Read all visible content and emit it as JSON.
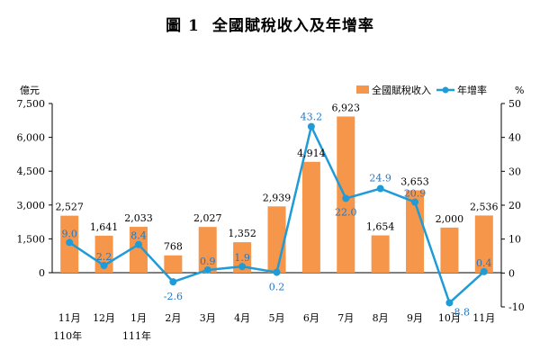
{
  "title": {
    "number": "圖 1",
    "text": "全國賦稅收入及年增率"
  },
  "chart_data": {
    "type": "bar+line",
    "categories": [
      "11月",
      "12月",
      "1月",
      "2月",
      "3月",
      "4月",
      "5月",
      "6月",
      "7月",
      "8月",
      "9月",
      "10月",
      "11月"
    ],
    "year_labels": [
      {
        "index": 0,
        "text": "110年"
      },
      {
        "index": 2,
        "text": "111年"
      }
    ],
    "series": [
      {
        "name": "全國賦稅收入",
        "type": "bar",
        "axis": "left",
        "color": "#f5964a",
        "values": [
          2527,
          1641,
          2033,
          768,
          2027,
          1352,
          2939,
          4914,
          6923,
          1654,
          3653,
          2000,
          2536
        ],
        "labels": [
          "2,527",
          "1,641",
          "2,033",
          "768",
          "2,027",
          "1,352",
          "2,939",
          "4,914",
          "6,923",
          "1,654",
          "3,653",
          "2,000",
          "2,536"
        ]
      },
      {
        "name": "年增率",
        "type": "line",
        "axis": "right",
        "color": "#1f9bd7",
        "values": [
          9.0,
          2.2,
          8.4,
          -2.6,
          0.9,
          1.9,
          0.2,
          43.2,
          22.0,
          24.9,
          20.9,
          -8.8,
          0.4
        ],
        "labels": [
          "9.0",
          "2.2",
          "8.4",
          "-2.6",
          "0.9",
          "1.9",
          "0.2",
          "43.2",
          "22.0",
          "24.9",
          "20.9",
          "-8.8",
          "0.4"
        ]
      }
    ],
    "left_axis": {
      "unit": "億元",
      "min": 0,
      "max": 7500,
      "ticks": [
        0,
        1500,
        3000,
        4500,
        6000,
        7500
      ],
      "tick_labels": [
        "0",
        "1,500",
        "3,000",
        "4,500",
        "6,000",
        "7,500"
      ]
    },
    "right_axis": {
      "unit": "%",
      "min": -10,
      "max": 50,
      "ticks": [
        -10,
        0,
        10,
        20,
        30,
        40,
        50
      ],
      "tick_labels": [
        "-10",
        "0",
        "10",
        "20",
        "30",
        "40",
        "50"
      ]
    },
    "grid": false,
    "legend_position": "top-right"
  }
}
